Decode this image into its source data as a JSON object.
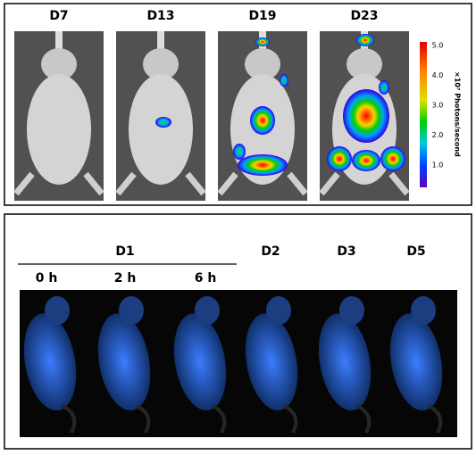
{
  "top_panel": {
    "labels": [
      "D7",
      "D13",
      "D19",
      "D23"
    ],
    "colorbar": {
      "ticks": [
        "5.0",
        "4.0",
        "3.0",
        "2.0",
        "1.0"
      ],
      "label": "×10⁷ Photons/second"
    }
  },
  "bottom_panel": {
    "group_label": "D1",
    "group_sublabels": [
      "0 h",
      "2 h",
      "6 h"
    ],
    "labels": [
      "D2",
      "D3",
      "D5"
    ]
  }
}
